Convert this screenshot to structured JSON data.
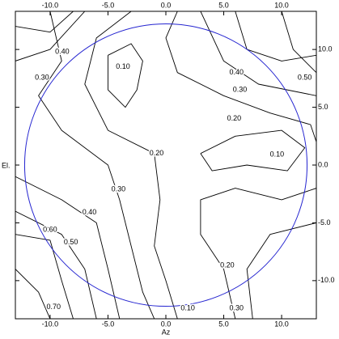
{
  "chart_data": {
    "type": "contour",
    "x_label": "Az",
    "y_label": "El.",
    "xlim": [
      -13,
      13
    ],
    "ylim": [
      -13.3,
      13.3
    ],
    "xticks": [
      {
        "value": -10,
        "label": "-10.0"
      },
      {
        "value": -5,
        "label": "-5.0"
      },
      {
        "value": 0,
        "label": "0.0"
      },
      {
        "value": 5,
        "label": "5.0"
      },
      {
        "value": 10,
        "label": "10.0"
      }
    ],
    "yticks": [
      {
        "value": -10,
        "label": "-10.0"
      },
      {
        "value": -5,
        "label": "-5.0"
      },
      {
        "value": 0,
        "label": "0.0"
      },
      {
        "value": 5,
        "label": "5.0"
      },
      {
        "value": 10,
        "label": "10.0"
      }
    ],
    "line_color": "#000000",
    "circle": {
      "radius": 12.2,
      "color": "#2424d0"
    },
    "contours": [
      {
        "x": [
          -5,
          -3,
          -2,
          -2.5,
          -3.5,
          -5,
          -5
        ],
        "y": [
          9.5,
          10.5,
          9,
          6.5,
          5,
          6.5,
          9.5
        ]
      },
      {
        "x": [
          3,
          6,
          10,
          12,
          10.5,
          7,
          4,
          3
        ],
        "y": [
          1,
          2.5,
          3,
          1.5,
          -0.5,
          0,
          -0.5,
          1
        ]
      },
      {
        "x": [
          1,
          0,
          1,
          5,
          9,
          12.5,
          13
        ],
        "y": [
          13.3,
          11,
          8,
          6,
          4.5,
          3.5,
          2
        ]
      },
      {
        "x": [
          -3,
          -6,
          -7,
          -5,
          -1,
          -0.5,
          -1,
          0,
          1
        ],
        "y": [
          13.3,
          11,
          7,
          3,
          1,
          -3,
          -7,
          -10,
          -13.3
        ]
      },
      {
        "x": [
          13,
          10,
          6,
          3,
          3,
          5,
          6
        ],
        "y": [
          -2,
          -3,
          -2,
          -3,
          -6,
          -9,
          -13.3
        ]
      },
      {
        "x": [
          -10,
          -9,
          -11,
          -9,
          -5,
          -4,
          -3,
          -2,
          -1
        ],
        "y": [
          13.3,
          9,
          6,
          3,
          0,
          -3,
          -7,
          -11,
          -13.3
        ]
      },
      {
        "x": [
          3,
          5,
          8,
          13
        ],
        "y": [
          13.3,
          9,
          7,
          6
        ]
      },
      {
        "x": [
          13,
          9,
          7,
          7.5
        ],
        "y": [
          -5,
          -6,
          -9,
          -13.3
        ]
      },
      {
        "x": [
          -13,
          -10,
          -7
        ],
        "y": [
          9,
          10,
          13.3
        ]
      },
      {
        "x": [
          -13,
          -9,
          -6,
          -5,
          -4
        ],
        "y": [
          -1,
          -3,
          -5,
          -9,
          -13.3
        ]
      },
      {
        "x": [
          6,
          7,
          10,
          13
        ],
        "y": [
          13.3,
          10,
          9,
          9.5
        ]
      },
      {
        "x": [
          -13,
          -9,
          -7,
          -6
        ],
        "y": [
          -4,
          -6,
          -9,
          -13.3
        ]
      },
      {
        "x": [
          10,
          11,
          13
        ],
        "y": [
          13.3,
          10,
          8
        ]
      },
      {
        "x": [
          -13,
          -10,
          -9,
          -8
        ],
        "y": [
          -6,
          -6.5,
          -10,
          -13.3
        ]
      },
      {
        "x": [
          -13,
          -11,
          -10
        ],
        "y": [
          -9,
          -11,
          -13.3
        ]
      },
      {
        "x": [
          -13,
          -10,
          -8
        ],
        "y": [
          12,
          11.5,
          13.3
        ]
      }
    ],
    "contour_labels": [
      {
        "text": "0.40",
        "x": -8.95,
        "y": 9.8
      },
      {
        "text": "0.30",
        "x": -10.7,
        "y": 7.55
      },
      {
        "text": "0.10",
        "x": -3.7,
        "y": 8.5
      },
      {
        "text": "0.40",
        "x": 6.1,
        "y": 8.0
      },
      {
        "text": "0.50",
        "x": 12.0,
        "y": 7.55
      },
      {
        "text": "0.30",
        "x": 6.4,
        "y": 6.5
      },
      {
        "text": "0.20",
        "x": 5.9,
        "y": 4.0
      },
      {
        "text": "0.10",
        "x": 9.6,
        "y": 0.9
      },
      {
        "text": "0.20",
        "x": -0.8,
        "y": 1.0
      },
      {
        "text": "0.30",
        "x": -4.1,
        "y": -2.1
      },
      {
        "text": "0.40",
        "x": -6.6,
        "y": -4.1
      },
      {
        "text": "0.60",
        "x": -10.0,
        "y": -5.6
      },
      {
        "text": "0.50",
        "x": -8.2,
        "y": -6.7
      },
      {
        "text": "0.20",
        "x": 5.3,
        "y": -8.7
      },
      {
        "text": "0.70",
        "x": -9.7,
        "y": -12.3
      },
      {
        "text": "0.10",
        "x": 1.9,
        "y": -12.4
      },
      {
        "text": "0.30",
        "x": 6.1,
        "y": -12.4
      }
    ]
  }
}
